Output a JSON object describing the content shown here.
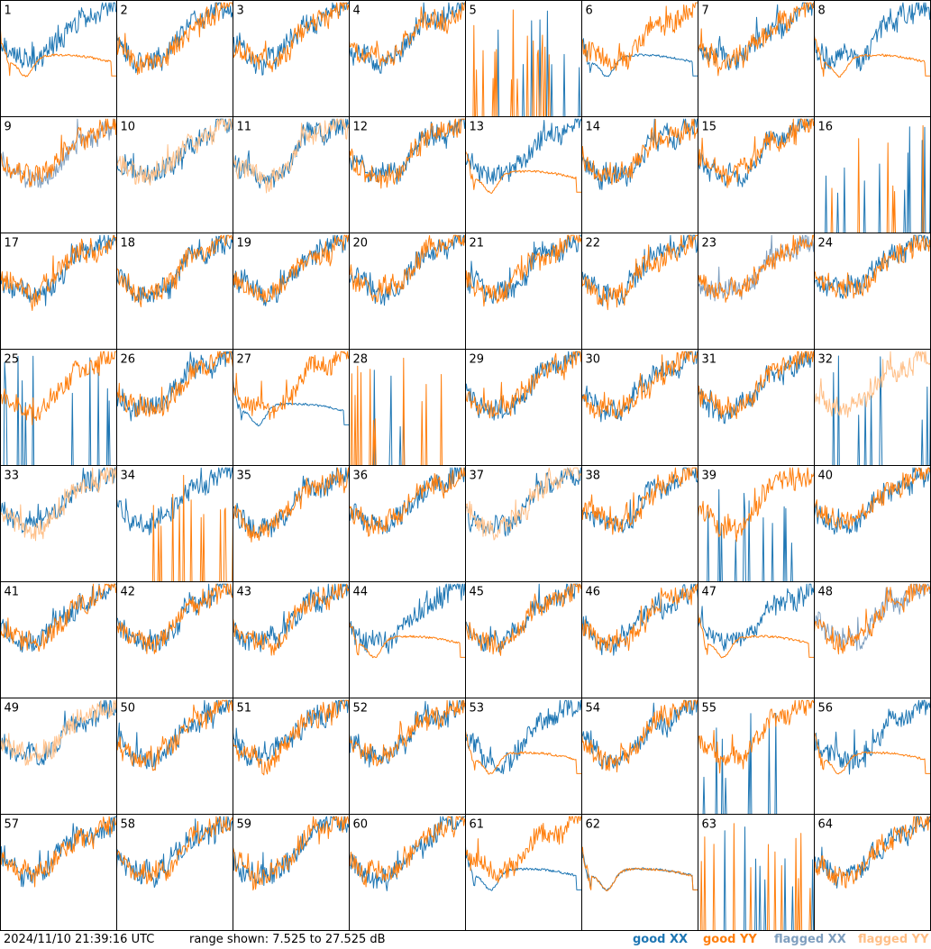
{
  "chart_data": {
    "type": "line",
    "panels_count": 64,
    "layout": {
      "rows": 8,
      "cols": 8
    },
    "panel_labels": [
      "1",
      "2",
      "3",
      "4",
      "5",
      "6",
      "7",
      "8",
      "9",
      "10",
      "11",
      "12",
      "13",
      "14",
      "15",
      "16",
      "17",
      "18",
      "19",
      "20",
      "21",
      "22",
      "23",
      "24",
      "25",
      "26",
      "27",
      "28",
      "29",
      "30",
      "31",
      "32",
      "33",
      "34",
      "35",
      "36",
      "37",
      "38",
      "39",
      "40",
      "41",
      "42",
      "43",
      "44",
      "45",
      "46",
      "47",
      "48",
      "49",
      "50",
      "51",
      "52",
      "53",
      "54",
      "55",
      "56",
      "57",
      "58",
      "59",
      "60",
      "61",
      "62",
      "63",
      "64"
    ],
    "ylim_db": [
      7.525,
      27.525
    ],
    "series": [
      {
        "name": "good XX",
        "color": "#1f77b4"
      },
      {
        "name": "good YY",
        "color": "#ff7f0e"
      },
      {
        "name": "flagged XX",
        "color": "#7f9fbf"
      },
      {
        "name": "flagged YY",
        "color": "#ffbf87"
      }
    ],
    "flag_status": {
      "xx_flagged_panels": [
        9,
        23,
        48
      ],
      "yy_flagged_panels": [
        10,
        11,
        32,
        33,
        37,
        49
      ],
      "xx_dropout_panels": [
        5,
        16,
        25,
        28,
        32,
        39,
        55,
        63
      ],
      "yy_dropout_panels": [
        5,
        16,
        28,
        34,
        63
      ],
      "xx_dip_panels": [
        6,
        27,
        61,
        62
      ],
      "yy_dip_panels": [
        1,
        8,
        13,
        44,
        47,
        53,
        56,
        62
      ]
    }
  },
  "footer": {
    "timestamp": "2024/11/10 21:39:16 UTC",
    "range_text": "range shown: 7.525 to 27.525 dB",
    "legend": [
      {
        "label": "good XX",
        "color": "#1f77b4"
      },
      {
        "label": "good YY",
        "color": "#ff7f0e"
      },
      {
        "label": "flagged XX",
        "color": "#7f9fbf"
      },
      {
        "label": "flagged YY",
        "color": "#ffbf87"
      }
    ]
  }
}
